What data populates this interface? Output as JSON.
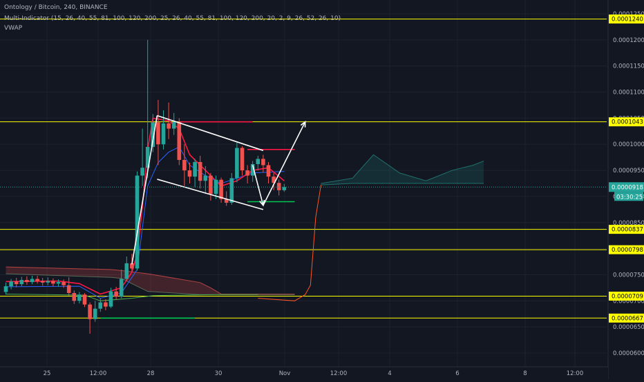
{
  "header": {
    "symbol_line": "Ontology / Bitcoin, 240, BINANCE",
    "indicator_line": "Multi-Indicator (15, 26, 40, 55, 81, 100, 120, 200, 25, 26, 40, 55, 81, 100, 120, 200, 20, 2, 9, 26, 52, 26, 10)",
    "vwap_line": "VWAP"
  },
  "colors": {
    "background": "#131722",
    "bull": "#26a69a",
    "bear": "#ef5350",
    "level": "#ffff00",
    "grid": "#1e2230",
    "axis_text": "#b2b5be",
    "drawing": "#ffffff",
    "price_badge": "#26a69a"
  },
  "chart_data": {
    "type": "candlestick",
    "title": "Ontology / Bitcoin, 240, BINANCE",
    "ylim": [
      5.8e-05,
      0.000128
    ],
    "y_ticks": [
      "0.0001250",
      "0.0001200",
      "0.0001150",
      "0.0001100",
      "0.0001050",
      "0.0001000",
      "0.0000950",
      "0.0000900",
      "0.0000850",
      "0.0000800",
      "0.0000750",
      "0.0000700",
      "0.0000650",
      "0.0000600"
    ],
    "x_ticks": [
      "25",
      "12:00",
      "28",
      "30",
      "Nov",
      "12:00",
      "4",
      "6",
      "8",
      "12:00"
    ],
    "horizontal_levels": [
      "0.0001240",
      "0.0001043",
      "0.0000837",
      "0.0000798",
      "0.0000709",
      "0.0000667"
    ],
    "current_price": "0.0000918",
    "countdown": "03:30:25",
    "candles": [
      {
        "o": 7.17e-05,
        "c": 7.28e-05,
        "h": 7.35e-05,
        "l": 7.12e-05
      },
      {
        "o": 7.28e-05,
        "c": 7.37e-05,
        "h": 7.42e-05,
        "l": 7.22e-05
      },
      {
        "o": 7.37e-05,
        "c": 7.32e-05,
        "h": 7.44e-05,
        "l": 7.26e-05
      },
      {
        "o": 7.32e-05,
        "c": 7.4e-05,
        "h": 7.46e-05,
        "l": 7.28e-05
      },
      {
        "o": 7.4e-05,
        "c": 7.36e-05,
        "h": 7.47e-05,
        "l": 7.31e-05
      },
      {
        "o": 7.36e-05,
        "c": 7.42e-05,
        "h": 7.48e-05,
        "l": 7.32e-05
      },
      {
        "o": 7.42e-05,
        "c": 7.38e-05,
        "h": 7.48e-05,
        "l": 7.33e-05
      },
      {
        "o": 7.38e-05,
        "c": 7.35e-05,
        "h": 7.44e-05,
        "l": 7.29e-05
      },
      {
        "o": 7.35e-05,
        "c": 7.38e-05,
        "h": 7.45e-05,
        "l": 7.3e-05
      },
      {
        "o": 7.38e-05,
        "c": 7.33e-05,
        "h": 7.43e-05,
        "l": 7.28e-05
      },
      {
        "o": 7.33e-05,
        "c": 7.36e-05,
        "h": 7.41e-05,
        "l": 7.27e-05
      },
      {
        "o": 7.36e-05,
        "c": 7.3e-05,
        "h": 7.41e-05,
        "l": 7.25e-05
      },
      {
        "o": 7.3e-05,
        "c": 7.15e-05,
        "h": 7.45e-05,
        "l": 7.1e-05
      },
      {
        "o": 7.15e-05,
        "c": 7e-05,
        "h": 7.2e-05,
        "l": 6.94e-05
      },
      {
        "o": 7e-05,
        "c": 7.12e-05,
        "h": 7.17e-05,
        "l": 6.95e-05
      },
      {
        "o": 7.12e-05,
        "c": 6.93e-05,
        "h": 7.15e-05,
        "l": 6.88e-05
      },
      {
        "o": 6.93e-05,
        "c": 6.65e-05,
        "h": 6.97e-05,
        "l": 6.37e-05
      },
      {
        "o": 6.65e-05,
        "c": 6.85e-05,
        "h": 7e-05,
        "l": 6.6e-05
      },
      {
        "o": 6.85e-05,
        "c": 6.97e-05,
        "h": 7.05e-05,
        "l": 6.79e-05
      },
      {
        "o": 6.97e-05,
        "c": 6.89e-05,
        "h": 7.03e-05,
        "l": 6.82e-05
      },
      {
        "o": 6.89e-05,
        "c": 7.18e-05,
        "h": 7.25e-05,
        "l": 6.86e-05
      },
      {
        "o": 7.18e-05,
        "c": 7.08e-05,
        "h": 7.27e-05,
        "l": 7.03e-05
      },
      {
        "o": 7.08e-05,
        "c": 7.42e-05,
        "h": 7.6e-05,
        "l": 7.05e-05
      },
      {
        "o": 7.42e-05,
        "c": 7.72e-05,
        "h": 7.85e-05,
        "l": 7.38e-05
      },
      {
        "o": 7.72e-05,
        "c": 7.62e-05,
        "h": 7.9e-05,
        "l": 7.56e-05
      },
      {
        "o": 7.62e-05,
        "c": 9.4e-05,
        "h": 9.48e-05,
        "l": 7.58e-05
      },
      {
        "o": 9.4e-05,
        "c": 9.55e-05,
        "h": 0.000103,
        "l": 9.2e-05
      },
      {
        "o": 9.55e-05,
        "c": 9.95e-05,
        "h": 0.00012,
        "l": 9.35e-05
      },
      {
        "o": 9.95e-05,
        "c": 0.0001042,
        "h": 0.0001058,
        "l": 9.85e-05
      },
      {
        "o": 0.0001042,
        "c": 0.0001,
        "h": 0.0001085,
        "l": 9.6e-05
      },
      {
        "o": 0.0001,
        "c": 0.000104,
        "h": 0.0001065,
        "l": 9.9e-05
      },
      {
        "o": 0.000104,
        "c": 0.000103,
        "h": 0.000108,
        "l": 0.000101
      },
      {
        "o": 0.000103,
        "c": 0.0001043,
        "h": 0.000106,
        "l": 0.0001018
      },
      {
        "o": 0.0001043,
        "c": 9.7e-05,
        "h": 0.000105,
        "l": 9.6e-05
      },
      {
        "o": 9.7e-05,
        "c": 9.5e-05,
        "h": 0.0001,
        "l": 9.2e-05
      },
      {
        "o": 9.5e-05,
        "c": 9.38e-05,
        "h": 9.65e-05,
        "l": 9.25e-05
      },
      {
        "o": 9.38e-05,
        "c": 9.66e-05,
        "h": 9.72e-05,
        "l": 9.18e-05
      },
      {
        "o": 9.66e-05,
        "c": 9.3e-05,
        "h": 9.78e-05,
        "l": 9.15e-05
      },
      {
        "o": 9.3e-05,
        "c": 9.4e-05,
        "h": 9.58e-05,
        "l": 9.05e-05
      },
      {
        "o": 9.4e-05,
        "c": 9.05e-05,
        "h": 9.45e-05,
        "l": 8.92e-05
      },
      {
        "o": 9.05e-05,
        "c": 9.32e-05,
        "h": 9.4e-05,
        "l": 8.95e-05
      },
      {
        "o": 9.32e-05,
        "c": 8.95e-05,
        "h": 9.36e-05,
        "l": 8.88e-05
      },
      {
        "o": 8.95e-05,
        "c": 8.88e-05,
        "h": 9.1e-05,
        "l": 8.82e-05
      },
      {
        "o": 8.88e-05,
        "c": 9.35e-05,
        "h": 9.45e-05,
        "l": 8.84e-05
      },
      {
        "o": 9.35e-05,
        "c": 9.93e-05,
        "h": 0.0001005,
        "l": 9.27e-05
      },
      {
        "o": 9.93e-05,
        "c": 9.5e-05,
        "h": 9.96e-05,
        "l": 9.4e-05
      },
      {
        "o": 9.5e-05,
        "c": 9.4e-05,
        "h": 9.6e-05,
        "l": 9.25e-05
      },
      {
        "o": 9.4e-05,
        "c": 9.62e-05,
        "h": 9.68e-05,
        "l": 9.28e-05
      },
      {
        "o": 9.62e-05,
        "c": 9.72e-05,
        "h": 9.78e-05,
        "l": 9.5e-05
      },
      {
        "o": 9.72e-05,
        "c": 9.6e-05,
        "h": 9.8e-05,
        "l": 9.46e-05
      },
      {
        "o": 9.6e-05,
        "c": 9.38e-05,
        "h": 9.66e-05,
        "l": 9.25e-05
      },
      {
        "o": 9.38e-05,
        "c": 9.26e-05,
        "h": 9.45e-05,
        "l": 9.12e-05
      },
      {
        "o": 9.26e-05,
        "c": 9.12e-05,
        "h": 9.32e-05,
        "l": 9.02e-05
      },
      {
        "o": 9.12e-05,
        "c": 9.18e-05,
        "h": 9.24e-05,
        "l": 9.09e-05
      }
    ],
    "cloud": [
      {
        "x": 0,
        "y1": 7.65e-05,
        "y2": 7.52e-05
      },
      {
        "x": 20,
        "y1": 7.6e-05,
        "y2": 7.45e-05
      },
      {
        "x": 22,
        "y1": 7.58e-05,
        "y2": 7.43e-05
      },
      {
        "x": 27,
        "y1": 7.52e-05,
        "y2": 7.18e-05
      },
      {
        "x": 37,
        "y1": 7.35e-05,
        "y2": 7.12e-05
      },
      {
        "x": 39,
        "y1": 7.25e-05,
        "y2": 7.12e-05
      },
      {
        "x": 41,
        "y1": 7.13e-05,
        "y2": 7.12e-05
      },
      {
        "x": 55,
        "y1": 7.13e-05,
        "y2": 7.12e-05
      },
      {
        "x": 60,
        "y1": 9.25e-05,
        "y2": 9.22e-05
      },
      {
        "x": 66,
        "y1": 9.35e-05,
        "y2": 9.25e-05
      },
      {
        "x": 70,
        "y1": 9.8e-05,
        "y2": 9.25e-05
      },
      {
        "x": 75,
        "y1": 9.45e-05,
        "y2": 9.25e-05
      },
      {
        "x": 80,
        "y1": 9.3e-05,
        "y2": 9.25e-05
      },
      {
        "x": 85,
        "y1": 9.5e-05,
        "y2": 9.25e-05
      },
      {
        "x": 89,
        "y1": 9.6e-05,
        "y2": 9.25e-05
      },
      {
        "x": 91,
        "y1": 9.68e-05,
        "y2": 9.25e-05
      }
    ],
    "red_ma": [
      [
        0,
        7.37e-05
      ],
      [
        10,
        7.38e-05
      ],
      [
        14,
        7.33e-05
      ],
      [
        18,
        7.13e-05
      ],
      [
        22,
        7.25e-05
      ],
      [
        24,
        7.55e-05
      ],
      [
        25,
        7.9e-05
      ],
      [
        26,
        8.8e-05
      ],
      [
        27,
        9.9e-05
      ],
      [
        28,
        0.000105
      ],
      [
        31,
        0.0001045
      ],
      [
        33,
        0.000103
      ],
      [
        35,
        9.8e-05
      ],
      [
        38,
        9.5e-05
      ],
      [
        41,
        9.2e-05
      ],
      [
        44,
        9.3e-05
      ],
      [
        47,
        9.5e-05
      ],
      [
        50,
        9.55e-05
      ],
      [
        53,
        9.3e-05
      ]
    ],
    "blue_ma": [
      [
        0,
        7.27e-05
      ],
      [
        14,
        7.28e-05
      ],
      [
        18,
        7.05e-05
      ],
      [
        22,
        7.15e-05
      ],
      [
        25,
        7.6e-05
      ],
      [
        27,
        9.2e-05
      ],
      [
        29,
        9.65e-05
      ],
      [
        31,
        9.85e-05
      ],
      [
        33,
        9.95e-05
      ],
      [
        35,
        9.6e-05
      ],
      [
        38,
        9.4e-05
      ],
      [
        41,
        9.25e-05
      ],
      [
        44,
        9.35e-05
      ],
      [
        47,
        9.45e-05
      ],
      [
        53,
        9.48e-05
      ]
    ],
    "green_ma": [
      [
        0,
        7.13e-05
      ],
      [
        15,
        7.11e-05
      ],
      [
        18,
        7e-05
      ],
      [
        24,
        7.05e-05
      ],
      [
        28,
        7.1e-05
      ],
      [
        40,
        7.12e-05
      ],
      [
        48,
        7.12e-05
      ]
    ],
    "lagging_line": [
      [
        48,
        7.05e-05
      ],
      [
        55,
        7e-05
      ],
      [
        57,
        7.12e-05
      ],
      [
        58,
        7.3e-05
      ],
      [
        59,
        8.6e-05
      ],
      [
        60,
        9.22e-05
      ]
    ],
    "red_levels": [
      {
        "x1": 33,
        "x2": 47,
        "y": 0.0001043
      },
      {
        "x1": 46,
        "x2": 55,
        "y": 9.9e-05
      }
    ],
    "green_levels": [
      {
        "x1": 18,
        "x2": 36,
        "y": 6.67e-05
      },
      {
        "x1": 46,
        "x2": 55,
        "y": 8.9e-05
      }
    ],
    "drawings": {
      "channel_upper": [
        [
          28.8,
          0.0001055
        ],
        [
          49,
          9.88e-05
        ]
      ],
      "channel_lower": [
        [
          28.8,
          9.33e-05
        ],
        [
          49,
          8.75e-05
        ]
      ],
      "impulse_leg": [
        [
          24,
          7.7e-05
        ],
        [
          28.8,
          0.0001055
        ]
      ],
      "arrow_path": [
        [
          47,
          9.6e-05
        ],
        [
          49,
          8.83e-05
        ],
        [
          57,
          0.0001043
        ]
      ]
    }
  }
}
